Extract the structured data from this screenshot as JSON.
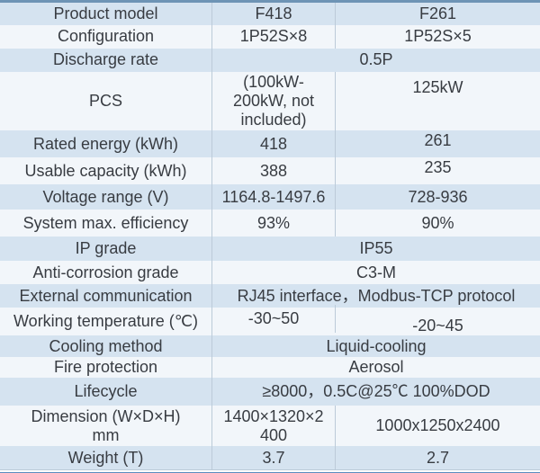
{
  "table": {
    "colors": {
      "row_odd": "#d5e3f0",
      "row_even": "#f2f6fa",
      "border_top": "#6e94b5",
      "border_bottom": "#5a8cbe",
      "grid_line": "#bccbd9",
      "text": "#383c42"
    },
    "rows": [
      {
        "id": "product-model",
        "label": "Product model",
        "values": [
          "F418",
          "F261"
        ]
      },
      {
        "id": "configuration",
        "label": "Configuration",
        "values": [
          "1P52S×8",
          "1P52S×5"
        ]
      },
      {
        "id": "discharge-rate",
        "label": "Discharge rate",
        "merged": "0.5P"
      },
      {
        "id": "pcs",
        "label": "PCS",
        "values": [
          "(100kW-\n200kW, not\nincluded)",
          "125kW"
        ]
      },
      {
        "id": "rated-energy",
        "label": "Rated energy (kWh)",
        "values": [
          "418",
          "261"
        ]
      },
      {
        "id": "usable-capacity",
        "label": "Usable capacity (kWh)",
        "values": [
          "388",
          "235"
        ]
      },
      {
        "id": "voltage-range",
        "label": "Voltage range (V)",
        "values": [
          "1164.8-1497.6",
          "728-936"
        ]
      },
      {
        "id": "system-max-efficiency",
        "label": "System max. efficiency",
        "values": [
          "93%",
          "90%"
        ]
      },
      {
        "id": "ip-grade",
        "label": "IP grade",
        "merged": "IP55"
      },
      {
        "id": "anti-corrosion-grade",
        "label": "Anti-corrosion grade",
        "merged": "C3-M"
      },
      {
        "id": "external-communication",
        "label": "External communication",
        "merged": "RJ45 interface，Modbus-TCP protocol"
      },
      {
        "id": "working-temperature",
        "label": "Working temperature (℃)",
        "values": [
          "-30~50",
          "-20~45"
        ]
      },
      {
        "id": "cooling-method",
        "label": "Cooling method",
        "merged": "Liquid-cooling"
      },
      {
        "id": "fire-protection",
        "label": "Fire protection",
        "merged": "Aerosol"
      },
      {
        "id": "lifecycle",
        "label": "Lifecycle",
        "merged": "≥8000，0.5C@25℃ 100%DOD"
      },
      {
        "id": "dimension",
        "label": "Dimension (W×D×H)\nmm",
        "values": [
          "1400×1320×2\n400",
          "1000x1250x2400"
        ]
      },
      {
        "id": "weight",
        "label": "Weight (T)",
        "values": [
          "3.7",
          "2.7"
        ]
      }
    ]
  }
}
